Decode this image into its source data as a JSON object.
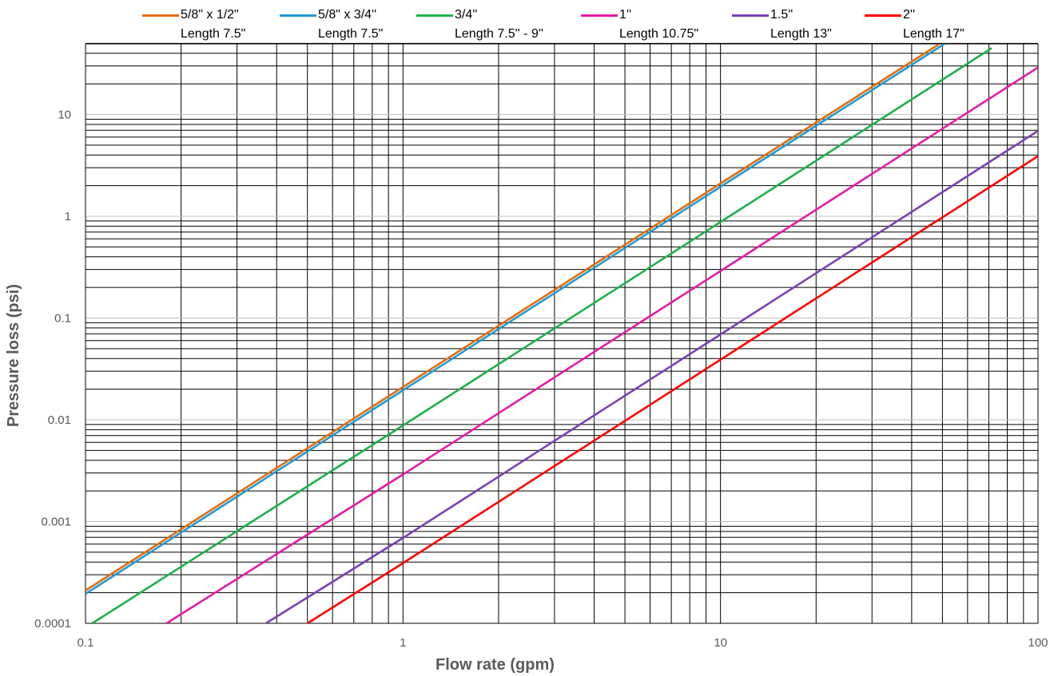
{
  "chart_data": {
    "type": "line",
    "title": "",
    "xlabel": "Flow rate (gpm)",
    "ylabel": "Pressure loss (psi)",
    "x_scale": "log",
    "y_scale": "log",
    "xlim": [
      0.1,
      100
    ],
    "ylim": [
      0.0001,
      50
    ],
    "x_ticks": [
      "0.1",
      "1",
      "10",
      "100"
    ],
    "y_ticks": [
      "0.0001",
      "0.001",
      "0.01",
      "0.1",
      "1",
      "10"
    ],
    "grid": true,
    "legend_position": "top",
    "series": [
      {
        "name": "5/8\" x 1/2\"",
        "subtitle": "Length 7.5\"",
        "color": "#E36C0A",
        "x": [
          0.1,
          1,
          10,
          49.2
        ],
        "y": [
          0.00021,
          0.021,
          2.1,
          50
        ]
      },
      {
        "name": "5/8\" x 3/4''",
        "subtitle": "Length 7.5\"",
        "color": "#1F9AD6",
        "x": [
          0.1,
          1,
          10,
          51
        ],
        "y": [
          0.000195,
          0.0195,
          1.95,
          50
        ]
      },
      {
        "name": "3/4''",
        "subtitle": "Length 7.5'' - 9''",
        "color": "#1DB04B",
        "x": [
          0.105,
          1,
          10,
          71.5
        ],
        "y": [
          0.0001,
          0.0088,
          0.88,
          45
        ]
      },
      {
        "name": "1''",
        "subtitle": "Length 10.75\"",
        "color": "#E619A5",
        "x": [
          0.18,
          1,
          10,
          100
        ],
        "y": [
          0.0001,
          0.0029,
          0.29,
          29
        ]
      },
      {
        "name": "1.5''",
        "subtitle": "Length 13\"",
        "color": "#7B3FB5",
        "x": [
          0.37,
          1,
          10,
          100
        ],
        "y": [
          0.0001,
          0.00069,
          0.069,
          6.9
        ]
      },
      {
        "name": "2''",
        "subtitle": "Length 17\"",
        "color": "#FF0000",
        "x": [
          0.5,
          1,
          10,
          100
        ],
        "y": [
          0.0001,
          0.00039,
          0.039,
          3.9
        ]
      }
    ]
  }
}
